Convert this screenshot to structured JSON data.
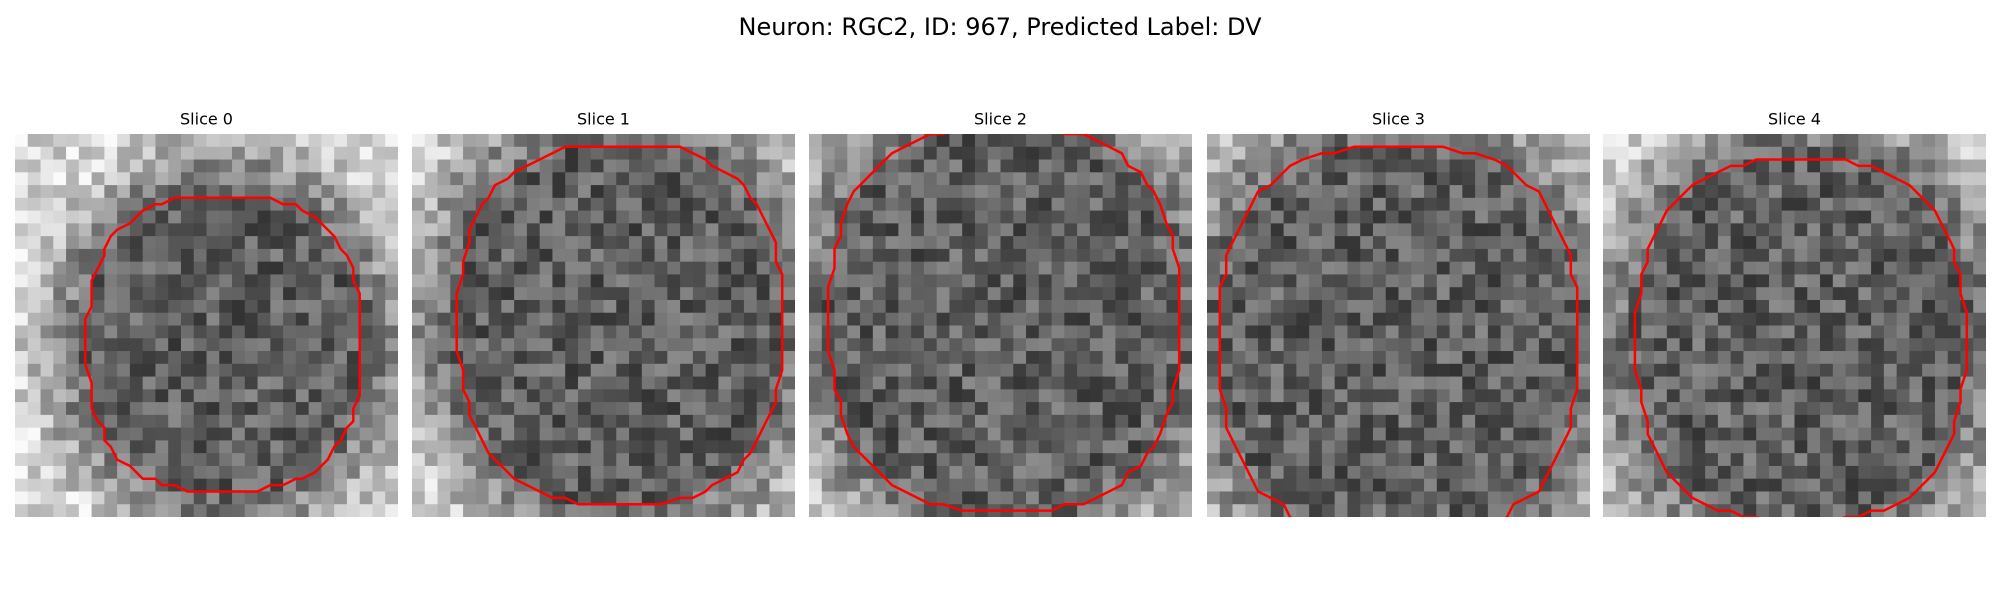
{
  "title": "Neuron: RGC2, ID: 967, Predicted Label: DV",
  "panels": [
    {
      "title": "Slice 0"
    },
    {
      "title": "Slice 1"
    },
    {
      "title": "Slice 2"
    },
    {
      "title": "Slice 3"
    },
    {
      "title": "Slice 4"
    }
  ]
}
